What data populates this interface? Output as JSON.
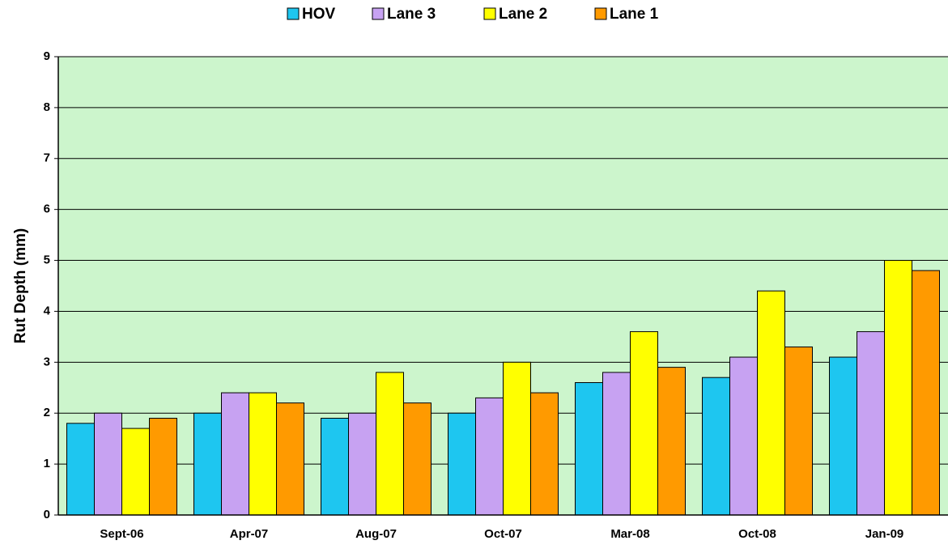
{
  "chart_data": {
    "type": "bar",
    "y_label": "Rut Depth (mm)",
    "categories": [
      "Sept-06",
      "Apr-07",
      "Aug-07",
      "Oct-07",
      "Mar-08",
      "Oct-08",
      "Jan-09"
    ],
    "series": [
      {
        "name": "HOV",
        "color": "#1ec6f0",
        "values": [
          1.8,
          2.0,
          1.9,
          2.0,
          2.6,
          2.7,
          3.1
        ]
      },
      {
        "name": "Lane 3",
        "color": "#c7a2f2",
        "values": [
          2.0,
          2.4,
          2.0,
          2.3,
          2.8,
          3.1,
          3.6
        ]
      },
      {
        "name": "Lane 2",
        "color": "#ffff00",
        "values": [
          1.7,
          2.4,
          2.8,
          3.0,
          3.6,
          4.4,
          5.0
        ]
      },
      {
        "name": "Lane 1",
        "color": "#ff9a00",
        "values": [
          1.9,
          2.2,
          2.2,
          2.4,
          2.9,
          3.3,
          4.8
        ]
      }
    ],
    "ylim": [
      0,
      9
    ],
    "yticks": [
      0,
      1,
      2,
      3,
      4,
      5,
      6,
      7,
      8,
      9
    ],
    "grid": true,
    "legend": "top",
    "plot_background": "#ccf5cc"
  }
}
